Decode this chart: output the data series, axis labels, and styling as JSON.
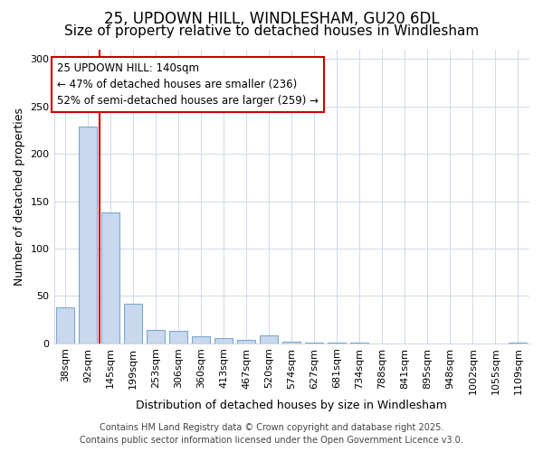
{
  "title_line1": "25, UPDOWN HILL, WINDLESHAM, GU20 6DL",
  "title_line2": "Size of property relative to detached houses in Windlesham",
  "xlabel": "Distribution of detached houses by size in Windlesham",
  "ylabel": "Number of detached properties",
  "categories": [
    "38sqm",
    "92sqm",
    "145sqm",
    "199sqm",
    "253sqm",
    "306sqm",
    "360sqm",
    "413sqm",
    "467sqm",
    "520sqm",
    "574sqm",
    "627sqm",
    "681sqm",
    "734sqm",
    "788sqm",
    "841sqm",
    "895sqm",
    "948sqm",
    "1002sqm",
    "1055sqm",
    "1109sqm"
  ],
  "values": [
    38,
    229,
    138,
    42,
    14,
    13,
    7,
    5,
    4,
    8,
    2,
    1,
    1,
    1,
    0,
    0,
    0,
    0,
    0,
    0,
    1
  ],
  "bar_color": "#c8d8ee",
  "bar_edge_color": "#7aabcc",
  "vertical_line_index": 2,
  "vertical_line_color": "#cc0000",
  "annotation_text_line1": "25 UPDOWN HILL: 140sqm",
  "annotation_text_line2": "← 47% of detached houses are smaller (236)",
  "annotation_text_line3": "52% of semi-detached houses are larger (259) →",
  "annotation_box_color": "#cc0000",
  "background_color": "#ffffff",
  "plot_bg_color": "#ffffff",
  "grid_color": "#d0d8e8",
  "footer_line1": "Contains HM Land Registry data © Crown copyright and database right 2025.",
  "footer_line2": "Contains public sector information licensed under the Open Government Licence v3.0.",
  "ylim": [
    0,
    310
  ],
  "yticks": [
    0,
    50,
    100,
    150,
    200,
    250,
    300
  ],
  "title_fontsize": 12,
  "subtitle_fontsize": 11,
  "axis_label_fontsize": 9,
  "tick_fontsize": 8,
  "footer_fontsize": 7,
  "annotation_fontsize": 8.5
}
